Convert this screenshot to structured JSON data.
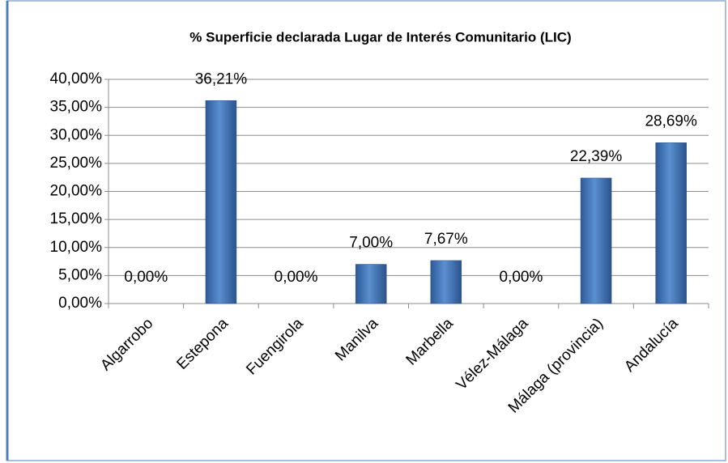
{
  "chart_data": {
    "type": "bar",
    "title": "% Superficie declarada Lugar de Interés Comunitario (LIC)",
    "categories": [
      "Algarrobo",
      "Estepona",
      "Fuengirola",
      "Manilva",
      "Marbella",
      "Vélez-Málaga",
      "Málaga (provincia)",
      "Andalucía"
    ],
    "values": [
      0,
      36.21,
      0,
      7,
      7.67,
      0,
      22.39,
      28.69
    ],
    "value_labels": [
      "0,00%",
      "36,21%",
      "0,00%",
      "7,00%",
      "7,67%",
      "0,00%",
      "22,39%",
      "28,69%"
    ],
    "color": "#4f81bd",
    "ylim": [
      0,
      40
    ],
    "yticks": [
      {
        "value": 0,
        "label": "0,00%"
      },
      {
        "value": 5,
        "label": "5,00%"
      },
      {
        "value": 10,
        "label": "10,00%"
      },
      {
        "value": 15,
        "label": "15,00%"
      },
      {
        "value": 20,
        "label": "20,00%"
      },
      {
        "value": 25,
        "label": "25,00%"
      },
      {
        "value": 30,
        "label": "30,00%"
      },
      {
        "value": 35,
        "label": "35,00%"
      },
      {
        "value": 40,
        "label": "40,00%"
      }
    ],
    "grid": true
  }
}
